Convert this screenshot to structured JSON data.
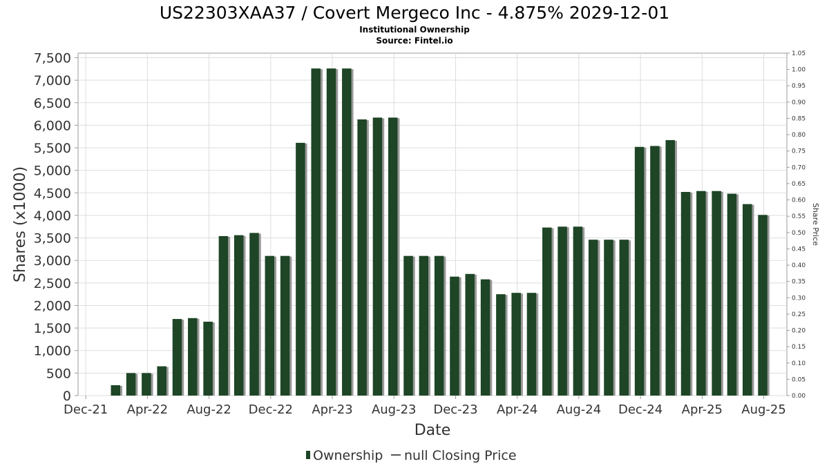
{
  "chart_data": {
    "type": "bar",
    "title": "US22303XAA37 / Covert Mergeco Inc - 4.875% 2029-12-01",
    "subtitle": "Institutional Ownership",
    "source": "Source: Fintel.io",
    "xlabel": "Date",
    "ylabel": "Shares (x1000)",
    "y2label": "Share Price",
    "ylim": [
      0,
      7600
    ],
    "y2lim": [
      0,
      1.05
    ],
    "y_ticks": [
      0,
      500,
      1000,
      1500,
      2000,
      2500,
      3000,
      3500,
      4000,
      4500,
      5000,
      5500,
      6000,
      6500,
      7000,
      7500
    ],
    "y_tick_labels": [
      "0",
      "500",
      "1,000",
      "1,500",
      "2,000",
      "2,500",
      "3,000",
      "3,500",
      "4,000",
      "4,500",
      "5,000",
      "5,500",
      "6,000",
      "6,500",
      "7,000",
      "7,500"
    ],
    "y2_ticks": [
      "0.00",
      "0.05",
      "0.10",
      "0.15",
      "0.20",
      "0.25",
      "0.30",
      "0.35",
      "0.40",
      "0.45",
      "0.50",
      "0.55",
      "0.60",
      "0.65",
      "0.70",
      "0.75",
      "0.80",
      "0.85",
      "0.90",
      "0.95",
      "1.00",
      "1.05"
    ],
    "x_ticks": [
      "Dec-21",
      "Apr-22",
      "Aug-22",
      "Dec-22",
      "Apr-23",
      "Aug-23",
      "Dec-23",
      "Apr-24",
      "Aug-24",
      "Dec-24",
      "Apr-25",
      "Aug-25"
    ],
    "grid": true,
    "legend_position": "bottom",
    "bar_color": "#1e4526",
    "bar_shadow_color": "#9a9a9a",
    "categories": [
      "Feb-22",
      "Mar-22",
      "Apr-22",
      "May-22",
      "Jun-22",
      "Jul-22",
      "Aug-22",
      "Sep-22",
      "Oct-22",
      "Nov-22",
      "Dec-22",
      "Jan-23",
      "Feb-23",
      "Mar-23",
      "Apr-23",
      "May-23",
      "Jun-23",
      "Jul-23",
      "Aug-23",
      "Sep-23",
      "Oct-23",
      "Nov-23",
      "Dec-23",
      "Jan-24",
      "Feb-24",
      "Mar-24",
      "Apr-24",
      "May-24",
      "Jun-24",
      "Jul-24",
      "Aug-24",
      "Sep-24",
      "Oct-24",
      "Nov-24",
      "Dec-24",
      "Jan-25",
      "Feb-25",
      "Mar-25",
      "Apr-25",
      "May-25",
      "Jun-25",
      "Jul-25",
      "Aug-25"
    ],
    "series": [
      {
        "name": "Ownership",
        "values": [
          230,
          500,
          500,
          650,
          1700,
          1720,
          1640,
          3540,
          3560,
          3610,
          3100,
          3100,
          5610,
          7260,
          7260,
          7260,
          6130,
          6170,
          6170,
          3100,
          3100,
          3100,
          2640,
          2700,
          2580,
          2250,
          2280,
          2280,
          3730,
          3750,
          3750,
          3460,
          3460,
          3460,
          5520,
          5540,
          5670,
          4520,
          4540,
          4540,
          4480,
          4250,
          4010
        ]
      }
    ],
    "legend": [
      {
        "label": "Ownership",
        "kind": "bar",
        "color": "#1e4526"
      },
      {
        "label": "null Closing Price",
        "kind": "line",
        "color": "#555555"
      }
    ]
  }
}
